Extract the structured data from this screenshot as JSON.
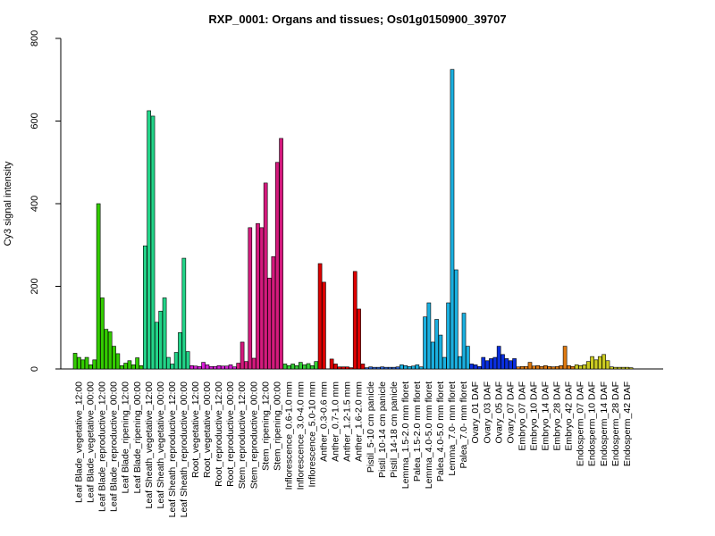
{
  "chart_data": {
    "type": "bar",
    "title": "RXP_0001: Organs and tissues; Os01g0150900_39707",
    "xlabel": "",
    "ylabel": "Cy3 signal intensity",
    "ylim": [
      0,
      800
    ],
    "yticks": [
      0,
      200,
      400,
      600,
      800
    ],
    "grid": false,
    "legend": "none",
    "category_labels": [
      "Leaf Blade_vegetative_12:00",
      "Leaf Blade_vegetative_00:00",
      "Leaf Blade_reproductive_12:00",
      "Leaf Blade_reproductive_00:00",
      "Leaf Blade_ripening_12:00",
      "Leaf Blade_ripening_00:00",
      "Leaf Sheath_vegetative_12:00",
      "Leaf Sheath_vegetative_00:00",
      "Leaf Sheath_reproductive_12:00",
      "Leaf Sheath_reproductive_00:00",
      "Root_vegetative_12:00",
      "Root_vegetative_00:00",
      "Root_reproductive_12:00",
      "Root_reproductive_00:00",
      "Stem_reproductive_12:00",
      "Stem_reproductive_00:00",
      "Stem_ripening_12:00",
      "Stem_ripening_00:00",
      "Inflorescence_0.6-1.0 mm",
      "Inflorescence_3.0-4.0 mm",
      "Inflorescence_5.0-10 mm",
      "Anther_0.3-0.6 mm",
      "Anther_0.7-1.0 mm",
      "Anther_1.2-1.5 mm",
      "Anther_1.6-2.0 mm",
      "Pistil_5-10 cm panicle",
      "Pistil_10-14 cm panicle",
      "Pistil_14-18 cm panicle",
      "Lemma_1.5-2.0 mm floret",
      "Palea_1.5-2.0 mm floret",
      "Lemma_4.0-5.0 mm floret",
      "Palea_4.0-5.0 mm floret",
      "Lemma_7.0- mm floret",
      "Palea_7.0- mm floret",
      "Ovary_01 DAF",
      "Ovary_03 DAF",
      "Ovary_05 DAF",
      "Ovary_07 DAF",
      "Embryo_07 DAF",
      "Embryo_10 DAF",
      "Embryo_14 DAF",
      "Embryo_28 DAF",
      "Embryo_42 DAF",
      "Endosperm_07 DAF",
      "Endosperm_10 DAF",
      "Endosperm_14 DAF",
      "Endosperm_28 DAF",
      "Endosperm_42 DAF"
    ],
    "bar_colors": [
      "#33cc00",
      "#33cc00",
      "#33cc00",
      "#33cc00",
      "#33cc00",
      "#33cc00",
      "#22d488",
      "#22d488",
      "#22d488",
      "#22d488",
      "#d81ed8",
      "#d81ed8",
      "#d81ed8",
      "#d81ed8",
      "#d41a7d",
      "#d41a7d",
      "#d41a7d",
      "#d41a7d",
      "#33cc33",
      "#33cc33",
      "#33cc33",
      "#dd0000",
      "#dd0000",
      "#dd0000",
      "#dd0000",
      "#2a62d6",
      "#2a62d6",
      "#2a62d6",
      "#1ab0e0",
      "#1ab0e0",
      "#1ab0e0",
      "#1ab0e0",
      "#1ab0e0",
      "#1ab0e0",
      "#0a2fe0",
      "#0a2fe0",
      "#0a2fe0",
      "#0a2fe0",
      "#e07a10",
      "#e07a10",
      "#e07a10",
      "#e07a10",
      "#e07a10",
      "#cccc22",
      "#cccc22",
      "#cccc22",
      "#cccc22",
      "#cccc22"
    ],
    "values": [
      [
        38,
        28,
        22
      ],
      [
        28,
        10,
        22
      ],
      [
        400,
        172,
        96
      ],
      [
        90,
        55,
        37
      ],
      [
        8,
        14,
        20
      ],
      [
        10,
        27,
        8
      ],
      [
        298,
        625,
        612
      ],
      [
        113,
        140,
        172
      ],
      [
        28,
        12,
        40
      ],
      [
        88,
        268,
        42
      ],
      [
        8,
        7,
        6
      ],
      [
        16,
        10,
        6
      ],
      [
        6,
        8,
        7
      ],
      [
        7,
        10,
        5
      ],
      [
        14,
        65,
        18
      ],
      [
        342,
        26,
        352
      ],
      [
        342,
        450,
        220
      ],
      [
        272,
        500,
        558
      ],
      [
        12,
        8,
        12
      ],
      [
        8,
        16,
        10
      ],
      [
        13,
        8,
        18
      ],
      [
        255,
        210,
        0
      ],
      [
        24,
        12,
        5
      ],
      [
        5,
        5,
        3
      ],
      [
        236,
        145,
        12
      ],
      [
        3,
        5,
        4
      ],
      [
        4,
        5,
        4
      ],
      [
        4,
        4,
        5
      ],
      [
        10,
        8,
        6
      ],
      [
        7,
        10,
        5
      ],
      [
        126,
        160,
        65
      ],
      [
        120,
        82,
        28
      ],
      [
        160,
        725,
        240
      ],
      [
        30,
        135,
        55
      ],
      [
        12,
        10,
        6
      ],
      [
        28,
        20,
        25
      ],
      [
        28,
        55,
        35
      ],
      [
        25,
        20,
        25
      ],
      [
        5,
        6,
        6
      ],
      [
        16,
        7,
        8
      ],
      [
        6,
        8,
        6
      ],
      [
        5,
        6,
        8
      ],
      [
        55,
        8,
        6
      ],
      [
        10,
        8,
        10
      ],
      [
        18,
        30,
        22
      ],
      [
        30,
        35,
        20
      ],
      [
        5,
        4,
        4
      ],
      [
        4,
        4,
        3
      ]
    ]
  }
}
